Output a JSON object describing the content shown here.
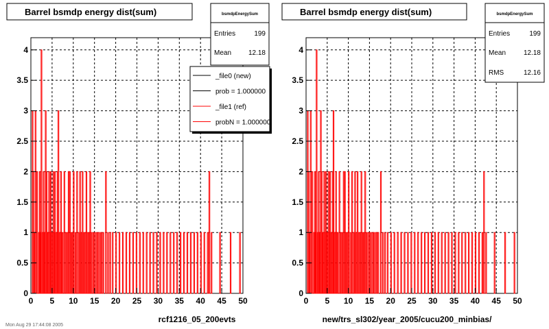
{
  "colors": {
    "hist": "#ff0000",
    "new_line": "#000000",
    "ref_line": "#ff0000",
    "grid": "#000000"
  },
  "footer_text": "Mon Aug 29 17:44:08 2005",
  "chart_data": [
    {
      "type": "bar",
      "title": "Barrel bsmdp energy dist(sum)",
      "xlabel": "rcf1216_05_200evts",
      "xlim": [
        0,
        50
      ],
      "ylim": [
        0,
        4.2
      ],
      "xticks": [
        0,
        5,
        10,
        15,
        20,
        25,
        30,
        35,
        40,
        45,
        50
      ],
      "yticks": [
        0,
        0.5,
        1,
        1.5,
        2,
        2.5,
        3,
        3.5,
        4
      ],
      "grid": true,
      "bin_width": 0.1,
      "x": [
        0.3,
        0.5,
        0.7,
        1.0,
        1.4,
        1.8,
        2.0,
        2.1,
        2.4,
        2.7,
        2.9,
        3.0,
        3.2,
        3.4,
        3.6,
        3.8,
        4.0,
        4.2,
        4.4,
        4.6,
        4.8,
        5.0,
        5.2,
        5.4,
        5.6,
        5.8,
        6.0,
        6.2,
        6.4,
        6.6,
        6.8,
        7.0,
        7.2,
        7.4,
        7.8,
        8.2,
        8.5,
        8.8,
        9.1,
        9.4,
        9.7,
        10.0,
        10.4,
        10.8,
        11.2,
        11.5,
        11.8,
        12.1,
        12.4,
        12.7,
        13.0,
        13.3,
        13.6,
        13.9,
        14.2,
        14.6,
        15.0,
        15.4,
        15.8,
        16.2,
        16.6,
        17.0,
        17.6,
        18.1,
        18.6,
        19.2,
        20.0,
        20.8,
        21.6,
        22.4,
        23.2,
        24.0,
        24.8,
        25.6,
        26.4,
        27.2,
        28.0,
        28.8,
        29.6,
        30.4,
        31.2,
        32.0,
        32.8,
        33.6,
        34.4,
        35.2,
        36.0,
        36.8,
        37.6,
        38.4,
        39.2,
        40.0,
        40.8,
        41.6,
        42.0,
        42.5,
        44.5,
        47.0,
        49.2
      ],
      "values": [
        3,
        2,
        1,
        3,
        2,
        1,
        2,
        1,
        4,
        1,
        2,
        1,
        1,
        3,
        2,
        1,
        1,
        2,
        1,
        2,
        1,
        1,
        2,
        1,
        2,
        1,
        1,
        2,
        3,
        1,
        1,
        2,
        1,
        1,
        2,
        1,
        1,
        2,
        2,
        1,
        1,
        2,
        1,
        2,
        1,
        2,
        1,
        2,
        1,
        1,
        2,
        1,
        1,
        2,
        1,
        1,
        1,
        1,
        1,
        1,
        1,
        1,
        2,
        1,
        1,
        1,
        1,
        1,
        1,
        1,
        1,
        1,
        1,
        1,
        1,
        1,
        1,
        1,
        1,
        1,
        1,
        1,
        1,
        1,
        1,
        1,
        1,
        1,
        1,
        1,
        1,
        1,
        1,
        1,
        2,
        1,
        1,
        1,
        1
      ],
      "stats": {
        "name": "bsmdpEnergySum",
        "entries_label": "Entries",
        "entries": "199",
        "mean_label": "Mean",
        "mean": "12.18"
      },
      "legend": {
        "placement": "top-right",
        "entries": [
          {
            "label": "_file0 (new)",
            "color": "#000000"
          },
          {
            "label": "prob = 1.000000",
            "color": "#000000"
          },
          {
            "label": "_file1 (ref)",
            "color": "#ff0000"
          },
          {
            "label": "probN = 1.000000",
            "color": "#ff0000"
          }
        ]
      }
    },
    {
      "type": "bar",
      "title": "Barrel bsmdp energy dist(sum)",
      "xlabel": "new/trs_sl302/year_2005/cucu200_minbias/",
      "xlim": [
        0,
        50
      ],
      "ylim": [
        0,
        4.2
      ],
      "xticks": [
        0,
        5,
        10,
        15,
        20,
        25,
        30,
        35,
        40,
        45,
        50
      ],
      "yticks": [
        0,
        0.5,
        1,
        1.5,
        2,
        2.5,
        3,
        3.5,
        4
      ],
      "grid": true,
      "bin_width": 0.1,
      "x": [
        0.3,
        0.5,
        0.7,
        1.0,
        1.4,
        1.8,
        2.0,
        2.1,
        2.4,
        2.7,
        2.9,
        3.0,
        3.2,
        3.4,
        3.6,
        3.8,
        4.0,
        4.2,
        4.4,
        4.6,
        4.8,
        5.0,
        5.2,
        5.4,
        5.6,
        5.8,
        6.0,
        6.2,
        6.4,
        6.6,
        6.8,
        7.0,
        7.2,
        7.4,
        7.8,
        8.2,
        8.5,
        8.8,
        9.1,
        9.4,
        9.7,
        10.0,
        10.4,
        10.8,
        11.2,
        11.5,
        11.8,
        12.1,
        12.4,
        12.7,
        13.0,
        13.3,
        13.6,
        13.9,
        14.2,
        14.6,
        15.0,
        15.4,
        15.8,
        16.2,
        16.6,
        17.0,
        17.6,
        18.1,
        18.6,
        19.2,
        20.0,
        20.8,
        21.6,
        22.4,
        23.2,
        24.0,
        24.8,
        25.6,
        26.4,
        27.2,
        28.0,
        28.8,
        29.6,
        30.4,
        31.2,
        32.0,
        32.8,
        33.6,
        34.4,
        35.2,
        36.0,
        36.8,
        37.6,
        38.4,
        39.2,
        40.0,
        40.8,
        41.6,
        42.0,
        42.5,
        44.5,
        47.0,
        49.2
      ],
      "values": [
        3,
        2,
        1,
        3,
        2,
        1,
        2,
        1,
        4,
        1,
        2,
        1,
        1,
        3,
        2,
        1,
        1,
        2,
        1,
        2,
        1,
        1,
        2,
        1,
        2,
        1,
        1,
        2,
        3,
        1,
        1,
        2,
        1,
        1,
        2,
        1,
        1,
        2,
        2,
        1,
        1,
        2,
        1,
        2,
        1,
        2,
        1,
        2,
        1,
        1,
        2,
        1,
        1,
        2,
        1,
        1,
        1,
        1,
        1,
        1,
        1,
        1,
        2,
        1,
        1,
        1,
        1,
        1,
        1,
        1,
        1,
        1,
        1,
        1,
        1,
        1,
        1,
        1,
        1,
        1,
        1,
        1,
        1,
        1,
        1,
        1,
        1,
        1,
        1,
        1,
        1,
        1,
        1,
        1,
        2,
        1,
        1,
        1,
        1
      ],
      "stats": {
        "name": "bsmdpEnergySum",
        "entries_label": "Entries",
        "entries": "199",
        "mean_label": "Mean",
        "mean": "12.18",
        "rms_label": "RMS",
        "rms": "12.16"
      }
    }
  ]
}
